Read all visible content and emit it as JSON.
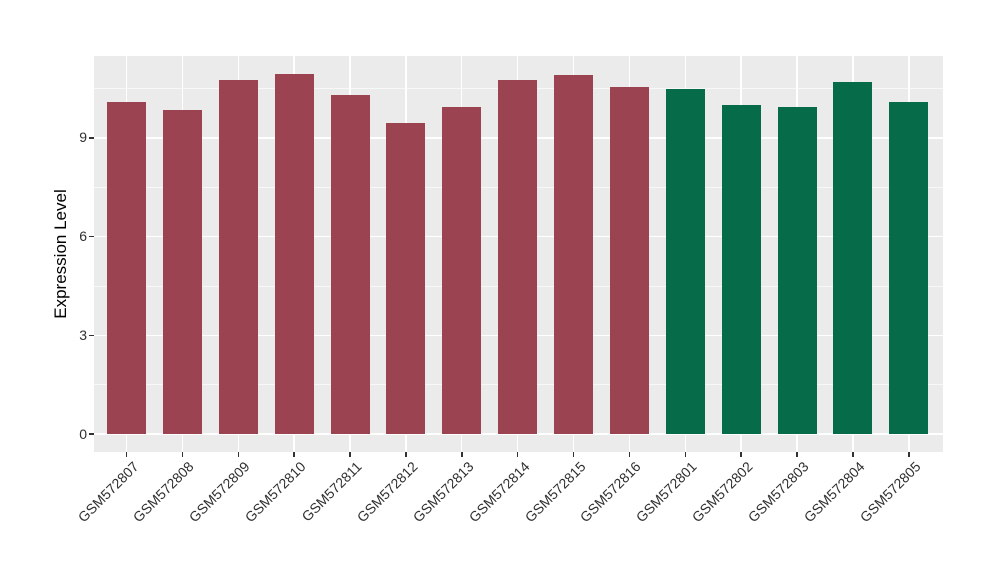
{
  "chart_data": {
    "type": "bar",
    "title": "",
    "xlabel": "",
    "ylabel": "Expression Level",
    "categories": [
      "GSM572807",
      "GSM572808",
      "GSM572809",
      "GSM572810",
      "GSM572811",
      "GSM572812",
      "GSM572813",
      "GSM572814",
      "GSM572815",
      "GSM572816",
      "GSM572801",
      "GSM572802",
      "GSM572803",
      "GSM572804",
      "GSM572805"
    ],
    "values": [
      10.1,
      9.85,
      10.75,
      10.95,
      10.3,
      9.45,
      9.95,
      10.75,
      10.9,
      10.55,
      10.5,
      10.0,
      9.95,
      10.7,
      10.1
    ],
    "groups": [
      "group1",
      "group1",
      "group1",
      "group1",
      "group1",
      "group1",
      "group1",
      "group1",
      "group1",
      "group1",
      "group2",
      "group2",
      "group2",
      "group2",
      "group2"
    ],
    "group_colors": {
      "group1": "#9C4351",
      "group2": "#056B48"
    },
    "y_major_ticks": [
      0,
      3,
      6,
      9
    ],
    "y_tick_labels": [
      "0",
      "3",
      "6",
      "9"
    ],
    "y_minor_ticks": [
      1.5,
      4.5,
      7.5,
      10.5
    ],
    "ylim": [
      -0.55,
      11.5
    ],
    "grid": true,
    "legend": "none",
    "panel_bg": "#EBEBEB",
    "grid_color": "#FFFFFF",
    "axis_text_color": "#303030",
    "axis_title_color": "#000000"
  }
}
